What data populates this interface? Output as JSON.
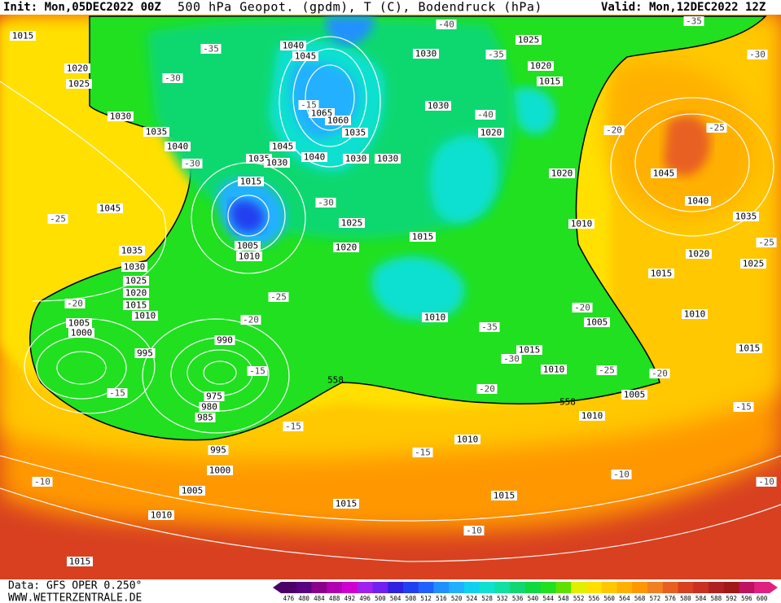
{
  "header": {
    "init": "Init: Mon,05DEC2022 00Z",
    "title": "500 hPa Geopot. (gpdm), T (C), Bodendruck (hPa)",
    "valid": "Valid: Mon,12DEC2022 12Z"
  },
  "footer": {
    "data": "Data: GFS OPER 0.250°",
    "site": "WWW.WETTERZENTRALE.DE"
  },
  "colorbar": {
    "values": [
      476,
      480,
      484,
      488,
      492,
      496,
      500,
      504,
      508,
      512,
      516,
      520,
      524,
      528,
      532,
      536,
      540,
      544,
      548,
      552,
      556,
      560,
      564,
      568,
      572,
      576,
      580,
      584,
      588,
      592,
      596,
      600
    ],
    "colors": [
      "#4b0066",
      "#5a0080",
      "#8a008a",
      "#b000b0",
      "#d000d0",
      "#a020f0",
      "#7020f0",
      "#3020e0",
      "#2040f0",
      "#2060ff",
      "#2090ff",
      "#20b0ff",
      "#10d0f0",
      "#10e0d0",
      "#10e0a0",
      "#10d870",
      "#10d840",
      "#20e020",
      "#60e000",
      "#e0f000",
      "#ffe000",
      "#ffc800",
      "#ffb000",
      "#ff9800",
      "#f08020",
      "#e86020",
      "#d84020",
      "#c83020",
      "#b02020",
      "#a01818",
      "#c01060",
      "#e02080"
    ]
  },
  "pressure_labels": [
    1015,
    1020,
    1025,
    1030,
    1035,
    1040,
    1045,
    1035,
    1030,
    1025,
    1020,
    1015,
    1010,
    1005,
    1000,
    995,
    990,
    975,
    980,
    985,
    995,
    1000,
    1005,
    1010,
    1015,
    1015,
    1040,
    1045,
    1065,
    1060,
    1035,
    1045,
    1035,
    1030,
    1040,
    1030,
    1030,
    1015,
    1005,
    1010,
    1025,
    1020,
    1015,
    1030,
    1030,
    1025,
    1020,
    1015,
    1020,
    1020,
    1010,
    1010,
    1005,
    1015,
    1010,
    1005,
    1010,
    1010,
    1015,
    1045,
    1040,
    1035,
    1020,
    1025,
    1015,
    1010,
    1015
  ],
  "temperature_labels": [
    -40,
    -35,
    -35,
    -30,
    -30,
    -25,
    -40,
    -30,
    -25,
    -20,
    -20,
    -15,
    -15,
    -35,
    -30,
    -25,
    -20,
    -20,
    -20,
    -15,
    -15,
    -10,
    -10,
    -10,
    -15,
    -10,
    -20,
    -25,
    -25,
    -35,
    -30,
    -15
  ],
  "contour_labels": [
    558,
    558
  ]
}
